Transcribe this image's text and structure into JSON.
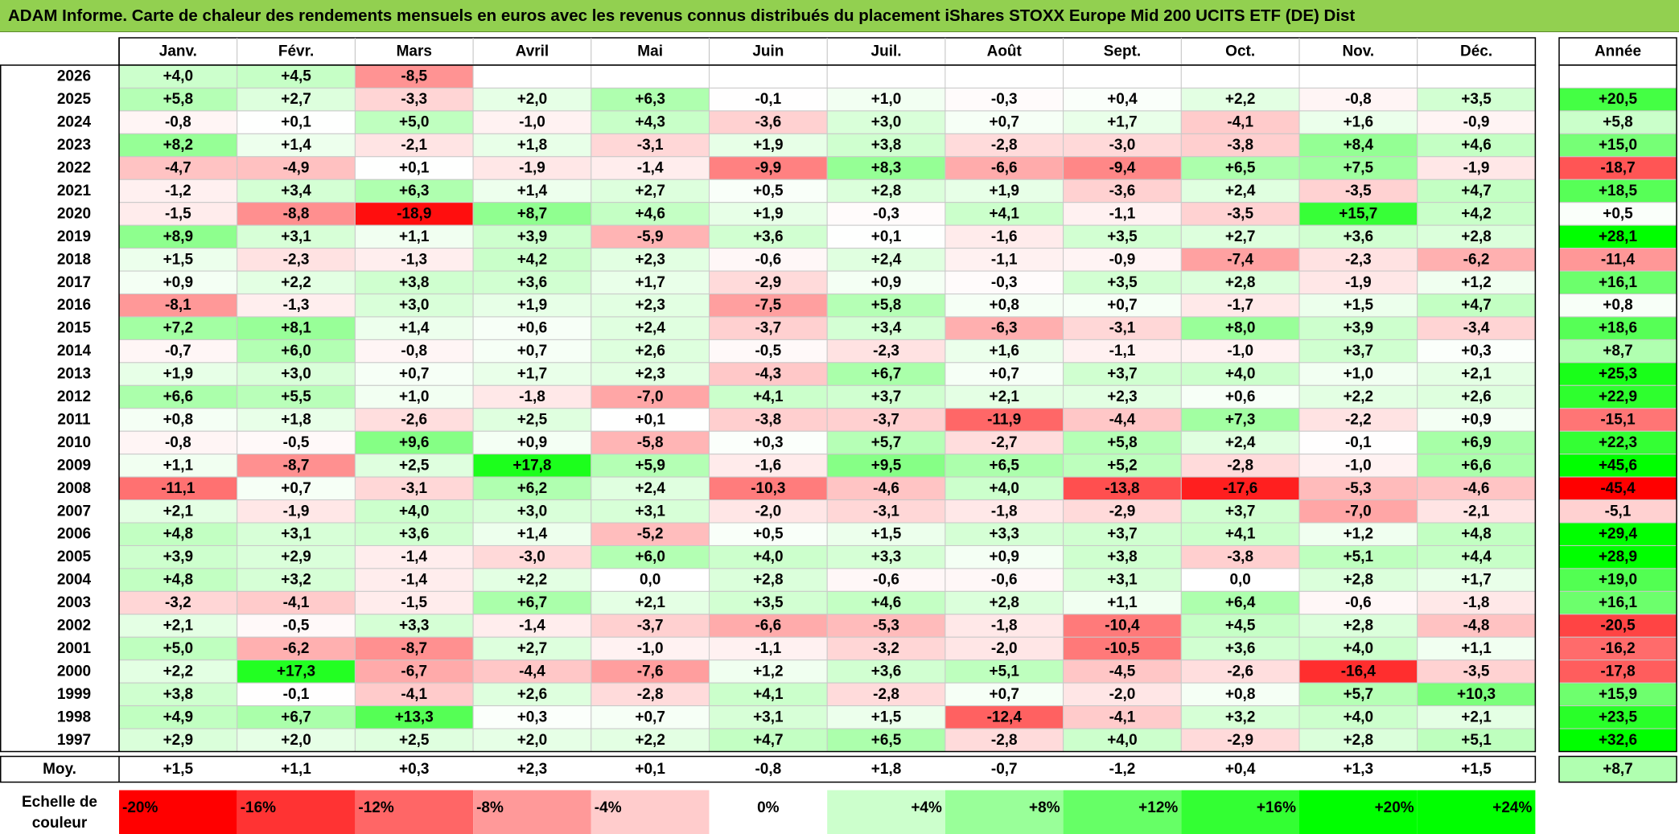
{
  "title": "ADAM Informe. Carte de chaleur des rendements mensuels en euros avec les revenus connus distribués du placement iShares STOXX Europe Mid 200 UCITS ETF (DE) Dist",
  "chart_data": {
    "type": "heatmap",
    "title": "ADAM Informe. Carte de chaleur des rendements mensuels en euros avec les revenus connus distribués du placement iShares STOXX Europe Mid 200 UCITS ETF (DE) Dist",
    "columns": [
      "Janv.",
      "Févr.",
      "Mars",
      "Avril",
      "Mai",
      "Juin",
      "Juil.",
      "Août",
      "Sept.",
      "Oct.",
      "Nov.",
      "Déc."
    ],
    "year_column_label": "Année",
    "rows": [
      {
        "year": "2026",
        "values": [
          "+4,0",
          "+4,5",
          "-8,5",
          "",
          "",
          "",
          "",
          "",
          "",
          "",
          "",
          ""
        ],
        "annual": ""
      },
      {
        "year": "2025",
        "values": [
          "+5,8",
          "+2,7",
          "-3,3",
          "+2,0",
          "+6,3",
          "-0,1",
          "+1,0",
          "-0,3",
          "+0,4",
          "+2,2",
          "-0,8",
          "+3,5"
        ],
        "annual": "+20,5"
      },
      {
        "year": "2024",
        "values": [
          "-0,8",
          "+0,1",
          "+5,0",
          "-1,0",
          "+4,3",
          "-3,6",
          "+3,0",
          "+0,7",
          "+1,7",
          "-4,1",
          "+1,6",
          "-0,9"
        ],
        "annual": "+5,8"
      },
      {
        "year": "2023",
        "values": [
          "+8,2",
          "+1,4",
          "-2,1",
          "+1,8",
          "-3,1",
          "+1,9",
          "+3,8",
          "-2,8",
          "-3,0",
          "-3,8",
          "+8,4",
          "+4,6"
        ],
        "annual": "+15,0"
      },
      {
        "year": "2022",
        "values": [
          "-4,7",
          "-4,9",
          "+0,1",
          "-1,9",
          "-1,4",
          "-9,9",
          "+8,3",
          "-6,6",
          "-9,4",
          "+6,5",
          "+7,5",
          "-1,9"
        ],
        "annual": "-18,7"
      },
      {
        "year": "2021",
        "values": [
          "-1,2",
          "+3,4",
          "+6,3",
          "+1,4",
          "+2,7",
          "+0,5",
          "+2,8",
          "+1,9",
          "-3,6",
          "+2,4",
          "-3,5",
          "+4,7"
        ],
        "annual": "+18,5"
      },
      {
        "year": "2020",
        "values": [
          "-1,5",
          "-8,8",
          "-18,9",
          "+8,7",
          "+4,6",
          "+1,9",
          "-0,3",
          "+4,1",
          "-1,1",
          "-3,5",
          "+15,7",
          "+4,2"
        ],
        "annual": "+0,5"
      },
      {
        "year": "2019",
        "values": [
          "+8,9",
          "+3,1",
          "+1,1",
          "+3,9",
          "-5,9",
          "+3,6",
          "+0,1",
          "-1,6",
          "+3,5",
          "+2,7",
          "+3,6",
          "+2,8"
        ],
        "annual": "+28,1"
      },
      {
        "year": "2018",
        "values": [
          "+1,5",
          "-2,3",
          "-1,3",
          "+4,2",
          "+2,3",
          "-0,6",
          "+2,4",
          "-1,1",
          "-0,9",
          "-7,4",
          "-2,3",
          "-6,2"
        ],
        "annual": "-11,4"
      },
      {
        "year": "2017",
        "values": [
          "+0,9",
          "+2,2",
          "+3,8",
          "+3,6",
          "+1,7",
          "-2,9",
          "+0,9",
          "-0,3",
          "+3,5",
          "+2,8",
          "-1,9",
          "+1,2"
        ],
        "annual": "+16,1"
      },
      {
        "year": "2016",
        "values": [
          "-8,1",
          "-1,3",
          "+3,0",
          "+1,9",
          "+2,3",
          "-7,5",
          "+5,8",
          "+0,8",
          "+0,7",
          "-1,7",
          "+1,5",
          "+4,7"
        ],
        "annual": "+0,8"
      },
      {
        "year": "2015",
        "values": [
          "+7,2",
          "+8,1",
          "+1,4",
          "+0,6",
          "+2,4",
          "-3,7",
          "+3,4",
          "-6,3",
          "-3,1",
          "+8,0",
          "+3,9",
          "-3,4"
        ],
        "annual": "+18,6"
      },
      {
        "year": "2014",
        "values": [
          "-0,7",
          "+6,0",
          "-0,8",
          "+0,7",
          "+2,6",
          "-0,5",
          "-2,3",
          "+1,6",
          "-1,1",
          "-1,0",
          "+3,7",
          "+0,3"
        ],
        "annual": "+8,7"
      },
      {
        "year": "2013",
        "values": [
          "+1,9",
          "+3,0",
          "+0,7",
          "+1,7",
          "+2,3",
          "-4,3",
          "+6,7",
          "+0,7",
          "+3,7",
          "+4,0",
          "+1,0",
          "+2,1"
        ],
        "annual": "+25,3"
      },
      {
        "year": "2012",
        "values": [
          "+6,6",
          "+5,5",
          "+1,0",
          "-1,8",
          "-7,0",
          "+4,1",
          "+3,7",
          "+2,1",
          "+2,3",
          "+0,6",
          "+2,2",
          "+2,6"
        ],
        "annual": "+22,9"
      },
      {
        "year": "2011",
        "values": [
          "+0,8",
          "+1,8",
          "-2,6",
          "+2,5",
          "+0,1",
          "-3,8",
          "-3,7",
          "-11,9",
          "-4,4",
          "+7,3",
          "-2,2",
          "+0,9"
        ],
        "annual": "-15,1"
      },
      {
        "year": "2010",
        "values": [
          "-0,8",
          "-0,5",
          "+9,6",
          "+0,9",
          "-5,8",
          "+0,3",
          "+5,7",
          "-2,7",
          "+5,8",
          "+2,4",
          "-0,1",
          "+6,9"
        ],
        "annual": "+22,3"
      },
      {
        "year": "2009",
        "values": [
          "+1,1",
          "-8,7",
          "+2,5",
          "+17,8",
          "+5,9",
          "-1,6",
          "+9,5",
          "+6,5",
          "+5,2",
          "-2,8",
          "-1,0",
          "+6,6"
        ],
        "annual": "+45,6"
      },
      {
        "year": "2008",
        "values": [
          "-11,1",
          "+0,7",
          "-3,1",
          "+6,2",
          "+2,4",
          "-10,3",
          "-4,6",
          "+4,0",
          "-13,8",
          "-17,6",
          "-5,3",
          "-4,6"
        ],
        "annual": "-45,4"
      },
      {
        "year": "2007",
        "values": [
          "+2,1",
          "-1,9",
          "+4,0",
          "+3,0",
          "+3,1",
          "-2,0",
          "-3,1",
          "-1,8",
          "-2,9",
          "+3,7",
          "-7,0",
          "-2,1"
        ],
        "annual": "-5,1"
      },
      {
        "year": "2006",
        "values": [
          "+4,8",
          "+3,1",
          "+3,6",
          "+1,4",
          "-5,2",
          "+0,5",
          "+1,5",
          "+3,3",
          "+3,7",
          "+4,1",
          "+1,2",
          "+4,8"
        ],
        "annual": "+29,4"
      },
      {
        "year": "2005",
        "values": [
          "+3,9",
          "+2,9",
          "-1,4",
          "-3,0",
          "+6,0",
          "+4,0",
          "+3,3",
          "+0,9",
          "+3,8",
          "-3,8",
          "+5,1",
          "+4,4"
        ],
        "annual": "+28,9"
      },
      {
        "year": "2004",
        "values": [
          "+4,8",
          "+3,2",
          "-1,4",
          "+2,2",
          "0,0",
          "+2,8",
          "-0,6",
          "-0,6",
          "+3,1",
          "0,0",
          "+2,8",
          "+1,7"
        ],
        "annual": "+19,0"
      },
      {
        "year": "2003",
        "values": [
          "-3,2",
          "-4,1",
          "-1,5",
          "+6,7",
          "+2,1",
          "+3,5",
          "+4,6",
          "+2,8",
          "+1,1",
          "+6,4",
          "-0,6",
          "-1,8"
        ],
        "annual": "+16,1"
      },
      {
        "year": "2002",
        "values": [
          "+2,1",
          "-0,5",
          "+3,3",
          "-1,4",
          "-3,7",
          "-6,6",
          "-5,3",
          "-1,8",
          "-10,4",
          "+4,5",
          "+2,8",
          "-4,8"
        ],
        "annual": "-20,5"
      },
      {
        "year": "2001",
        "values": [
          "+5,0",
          "-6,2",
          "-8,7",
          "+2,7",
          "-1,0",
          "-1,1",
          "-3,2",
          "-2,0",
          "-10,5",
          "+3,6",
          "+4,0",
          "+1,1"
        ],
        "annual": "-16,2"
      },
      {
        "year": "2000",
        "values": [
          "+2,2",
          "+17,3",
          "-6,7",
          "-4,4",
          "-7,6",
          "+1,2",
          "+3,6",
          "+5,1",
          "-4,5",
          "-2,6",
          "-16,4",
          "-3,5"
        ],
        "annual": "-17,8"
      },
      {
        "year": "1999",
        "values": [
          "+3,8",
          "-0,1",
          "-4,1",
          "+2,6",
          "-2,8",
          "+4,1",
          "-2,8",
          "+0,7",
          "-2,0",
          "+0,8",
          "+5,7",
          "+10,3"
        ],
        "annual": "+15,9"
      },
      {
        "year": "1998",
        "values": [
          "+4,9",
          "+6,7",
          "+13,3",
          "+0,3",
          "+0,7",
          "+3,1",
          "+1,5",
          "-12,4",
          "-4,1",
          "+3,2",
          "+4,0",
          "+2,1"
        ],
        "annual": "+23,5"
      },
      {
        "year": "1997",
        "values": [
          "+2,9",
          "+2,0",
          "+2,5",
          "+2,0",
          "+2,2",
          "+4,7",
          "+6,5",
          "-2,8",
          "+4,0",
          "-2,9",
          "+2,8",
          "+5,1"
        ],
        "annual": "+32,6"
      }
    ],
    "average": {
      "label": "Moy.",
      "values": [
        "+1,5",
        "+1,1",
        "+0,3",
        "+2,3",
        "+0,1",
        "-0,8",
        "+1,8",
        "-0,7",
        "-1,2",
        "+0,4",
        "+1,3",
        "+1,5"
      ],
      "annual": "+8,7"
    },
    "scale": {
      "label": [
        "Echelle de",
        "couleur"
      ],
      "steps": [
        {
          "text": "-20%",
          "value": -20,
          "align": "start"
        },
        {
          "text": "-16%",
          "value": -16,
          "align": "start"
        },
        {
          "text": "-12%",
          "value": -12,
          "align": "start"
        },
        {
          "text": "-8%",
          "value": -8,
          "align": "start"
        },
        {
          "text": "-4%",
          "value": -4,
          "align": "start"
        },
        {
          "text": "0%",
          "value": 0,
          "align": "middle"
        },
        {
          "text": "+4%",
          "value": 4,
          "align": "end"
        },
        {
          "text": "+8%",
          "value": 8,
          "align": "end"
        },
        {
          "text": "+12%",
          "value": 12,
          "align": "end"
        },
        {
          "text": "+16%",
          "value": 16,
          "align": "end"
        },
        {
          "text": "+20%",
          "value": 20,
          "align": "end"
        },
        {
          "text": "+24%",
          "value": 24,
          "align": "end"
        }
      ]
    },
    "colors": {
      "negative_max": "#FF0000",
      "neutral": "#FFFFFF",
      "positive_max": "#00FF00",
      "monthly_saturation_percent": 20,
      "annual_saturation_percent": 28,
      "title_background": "#92D050"
    }
  }
}
